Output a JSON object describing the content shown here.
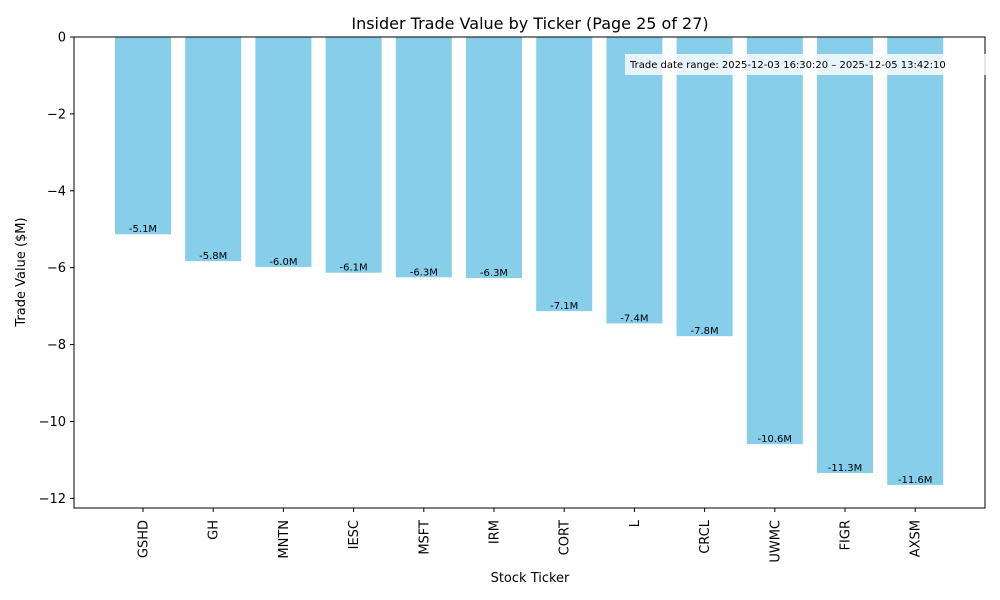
{
  "chart_data": {
    "type": "bar",
    "title": "Insider Trade Value by Ticker (Page 25 of 27)",
    "xlabel": "Stock Ticker",
    "ylabel": "Trade Value ($M)",
    "categories": [
      "GSHD",
      "GH",
      "MNTN",
      "IESC",
      "MSFT",
      "IRM",
      "CORT",
      "L",
      "CRCL",
      "UWMC",
      "FIGR",
      "AXSM"
    ],
    "values": [
      -5.13,
      -5.83,
      -5.98,
      -6.13,
      -6.25,
      -6.27,
      -7.13,
      -7.45,
      -7.78,
      -10.59,
      -11.34,
      -11.65
    ],
    "data_labels": [
      "-5.1M",
      "-5.8M",
      "-6.0M",
      "-6.1M",
      "-6.3M",
      "-6.3M",
      "-7.1M",
      "-7.4M",
      "-7.8M",
      "-10.6M",
      "-11.3M",
      "-11.6M"
    ],
    "ylim": [
      -12.25,
      0
    ],
    "yticks": [
      0,
      -2,
      -4,
      -6,
      -8,
      -10,
      -12
    ],
    "ytick_labels": [
      "0",
      "−2",
      "−4",
      "−6",
      "−8",
      "−10",
      "−12"
    ],
    "bar_color": "#87ceeb",
    "grid": false,
    "annotation": "Trade date range: 2025-12-03 16:30:20 – 2025-12-05 13:42:10",
    "annotation_placement": "top-right"
  }
}
